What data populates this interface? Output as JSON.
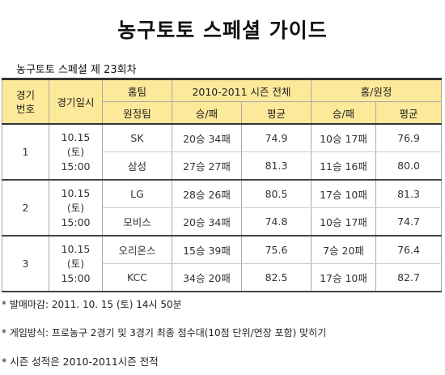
{
  "title": "농구토토 스페셜 가이드",
  "subtitle": "농구토토 스페셜 제 23회차",
  "headers": {
    "game_no": "경기\n번호",
    "date": "경기일시",
    "home_team": "홈팀",
    "away_team": "원정팀",
    "season": "2010-2011 시즌 전체",
    "home_away": "홈/원정",
    "record": "승/패",
    "average": "평균"
  },
  "games": [
    {
      "no": "1",
      "date": "10.15\n(토)\n15:00",
      "home": {
        "team": "SK",
        "season_record": "20승 34패",
        "season_avg": "74.9",
        "ha_record": "10승 17패",
        "ha_avg": "76.9"
      },
      "away": {
        "team": "삼성",
        "season_record": "27승 27패",
        "season_avg": "81.3",
        "ha_record": "11승 16패",
        "ha_avg": "80.0"
      }
    },
    {
      "no": "2",
      "date": "10.15\n(토)\n15:00",
      "home": {
        "team": "LG",
        "season_record": "28승 26패",
        "season_avg": "80.5",
        "ha_record": "17승 10패",
        "ha_avg": "81.3"
      },
      "away": {
        "team": "모비스",
        "season_record": "20승 34패",
        "season_avg": "74.8",
        "ha_record": "10승 17패",
        "ha_avg": "74.7"
      }
    },
    {
      "no": "3",
      "date": "10.15\n(토)\n15:00",
      "home": {
        "team": "오리온스",
        "season_record": "15승 39패",
        "season_avg": "75.6",
        "ha_record": "7승 20패",
        "ha_avg": "76.4"
      },
      "away": {
        "team": "KCC",
        "season_record": "34승 20패",
        "season_avg": "82.5",
        "ha_record": "17승 10패",
        "ha_avg": "82.7"
      }
    }
  ],
  "notes": [
    "* 발매마감: 2011. 10. 15 (토) 14시 50분",
    "* 게임방식: 프로농구 2경기 및 3경기 최종 점수대(10점 단위/연장 포함) 맞히기",
    "* 시즌 성적은 2010-2011시즌 전적"
  ]
}
